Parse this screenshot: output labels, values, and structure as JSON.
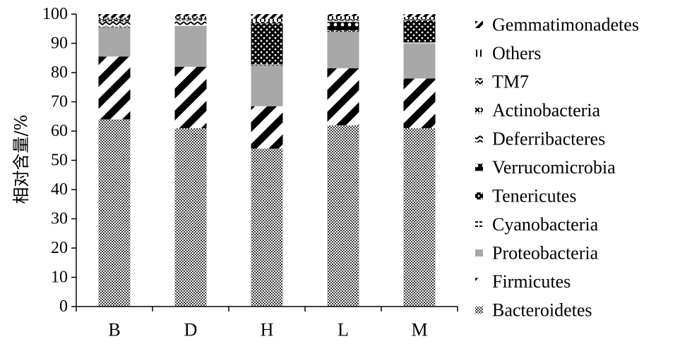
{
  "chart_data": {
    "type": "bar",
    "stacked": true,
    "title": "",
    "xlabel": "",
    "ylabel": "相对含量/%",
    "ylim": [
      0,
      100
    ],
    "yticks": [
      0,
      10,
      20,
      30,
      40,
      50,
      60,
      70,
      80,
      90,
      100
    ],
    "grid": false,
    "legend_position": "right",
    "categories": [
      "B",
      "D",
      "H",
      "L",
      "M"
    ],
    "series": [
      {
        "name": "Bacteroidetes",
        "pattern": "checker",
        "values": [
          64,
          61,
          54,
          62,
          61
        ]
      },
      {
        "name": "Firmicutes",
        "pattern": "diagonal",
        "values": [
          21.5,
          21,
          14.5,
          19.5,
          17
        ]
      },
      {
        "name": "Proteobacteria",
        "pattern": "gray",
        "values": [
          10,
          14,
          14,
          12.5,
          12
        ]
      },
      {
        "name": "Cyanobacteria",
        "pattern": "dash",
        "values": [
          0.3,
          0.3,
          0.3,
          0.3,
          0.3
        ]
      },
      {
        "name": "Tenericutes",
        "pattern": "dots",
        "values": [
          0,
          0,
          14,
          0,
          7.5
        ]
      },
      {
        "name": "Verrucomicrobia",
        "pattern": "bigdots",
        "values": [
          0,
          0,
          0,
          3,
          0
        ]
      },
      {
        "name": "Deferribacteres",
        "pattern": "zigzag",
        "values": [
          1.7,
          1.6,
          0,
          0.4,
          0
        ]
      },
      {
        "name": "Actinobacteria",
        "pattern": "cross",
        "values": [
          0.6,
          0.3,
          0,
          0.3,
          0.2
        ]
      },
      {
        "name": "TM7",
        "pattern": "chevron",
        "values": [
          0.3,
          0.4,
          0.6,
          0.3,
          0.3
        ]
      },
      {
        "name": "Others",
        "pattern": "vtick",
        "values": [
          0.4,
          0.6,
          1.0,
          1.0,
          0.7
        ]
      },
      {
        "name": "Gemmatimonadetes",
        "pattern": "diagonal2",
        "values": [
          1.2,
          0.8,
          1.6,
          0.7,
          1.0
        ]
      }
    ],
    "legend_order": [
      "Gemmatimonadetes",
      "Others",
      "TM7",
      "Actinobacteria",
      "Deferribacteres",
      "Verrucomicrobia",
      "Tenericutes",
      "Cyanobacteria",
      "Proteobacteria",
      "Firmicutes",
      "Bacteroidetes"
    ]
  }
}
